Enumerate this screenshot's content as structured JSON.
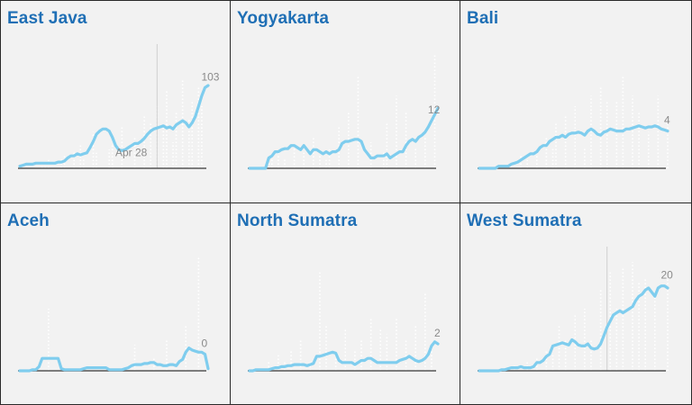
{
  "colors": {
    "line": "#7fcdee",
    "bars": "#ffffff",
    "title": "#1f6fb5",
    "baseline": "#555555",
    "panel_bg": "#f2f2f2"
  },
  "chart_data": [
    {
      "type": "line",
      "title": "East Java",
      "x": [
        1,
        2,
        3,
        4,
        5,
        6,
        7,
        8,
        9,
        10,
        11,
        12,
        13,
        14,
        15,
        16,
        17,
        18,
        19,
        20,
        21,
        22,
        23,
        24,
        25,
        26,
        27,
        28,
        29,
        30,
        31,
        32,
        33,
        34,
        35,
        36,
        37,
        38,
        39,
        40,
        41,
        42,
        43,
        44,
        45,
        46,
        47,
        48,
        49,
        50,
        51,
        52,
        53,
        54,
        55,
        56,
        57,
        58,
        59,
        60
      ],
      "series": [
        {
          "values": [
            2,
            3,
            4,
            4,
            4,
            5,
            5,
            5,
            5,
            5,
            5,
            5,
            6,
            6,
            7,
            10,
            12,
            12,
            14,
            13,
            14,
            15,
            20,
            26,
            33,
            36,
            38,
            38,
            36,
            30,
            22,
            18,
            17,
            18,
            20,
            22,
            24,
            24,
            26,
            29,
            33,
            36,
            38,
            39,
            40,
            41,
            39,
            40,
            38,
            42,
            44,
            46,
            44,
            40,
            44,
            50,
            60,
            70,
            78,
            80
          ]
        },
        {
          "values": [
            0,
            0,
            0,
            0,
            0,
            0,
            0,
            5,
            5,
            8,
            0,
            0,
            0,
            10,
            12,
            0,
            0,
            15,
            0,
            22,
            10,
            0,
            0,
            35,
            15,
            0,
            0,
            0,
            18,
            22,
            0,
            0,
            40,
            0,
            0,
            0,
            30,
            0,
            0,
            50,
            0,
            45,
            0,
            60,
            0,
            40,
            75,
            0,
            25,
            55,
            0,
            85,
            0,
            48,
            65,
            0,
            80,
            60,
            0,
            0
          ]
        }
      ],
      "annotations": [
        {
          "x": 59,
          "label": "103"
        },
        {
          "x": 36,
          "label": "Apr 28"
        }
      ],
      "vline_x": 44
    },
    {
      "type": "line",
      "title": "Yogyakarta",
      "x": [
        1,
        2,
        3,
        4,
        5,
        6,
        7,
        8,
        9,
        10,
        11,
        12,
        13,
        14,
        15,
        16,
        17,
        18,
        19,
        20,
        21,
        22,
        23,
        24,
        25,
        26,
        27,
        28,
        29,
        30,
        31,
        32,
        33,
        34,
        35,
        36,
        37,
        38,
        39,
        40,
        41,
        42,
        43,
        44,
        45,
        46,
        47,
        48,
        49,
        50,
        51,
        52,
        53,
        54,
        55,
        56,
        57,
        58,
        59,
        60
      ],
      "series": [
        {
          "values": [
            0,
            0,
            0,
            0,
            0,
            0,
            10,
            12,
            16,
            16,
            18,
            19,
            19,
            22,
            22,
            20,
            18,
            22,
            18,
            14,
            18,
            18,
            16,
            14,
            16,
            14,
            16,
            16,
            18,
            24,
            26,
            26,
            27,
            28,
            28,
            26,
            18,
            14,
            10,
            10,
            12,
            12,
            12,
            14,
            10,
            12,
            14,
            16,
            16,
            22,
            26,
            28,
            26,
            30,
            32,
            35,
            40,
            46,
            52,
            58
          ]
        },
        {
          "values": [
            0,
            0,
            0,
            0,
            0,
            0,
            5,
            10,
            0,
            15,
            0,
            10,
            0,
            0,
            22,
            0,
            0,
            15,
            0,
            0,
            30,
            0,
            12,
            0,
            8,
            18,
            0,
            0,
            40,
            0,
            0,
            55,
            0,
            0,
            90,
            0,
            0,
            0,
            25,
            0,
            0,
            0,
            15,
            45,
            0,
            0,
            70,
            0,
            0,
            55,
            0,
            0,
            20,
            0,
            0,
            30,
            0,
            0,
            110,
            0
          ]
        }
      ],
      "annotations": [
        {
          "x": 58,
          "label": "12"
        }
      ]
    },
    {
      "type": "line",
      "title": "Bali",
      "x": [
        1,
        2,
        3,
        4,
        5,
        6,
        7,
        8,
        9,
        10,
        11,
        12,
        13,
        14,
        15,
        16,
        17,
        18,
        19,
        20,
        21,
        22,
        23,
        24,
        25,
        26,
        27,
        28,
        29,
        30,
        31,
        32,
        33,
        34,
        35,
        36,
        37,
        38,
        39,
        40,
        41,
        42,
        43,
        44,
        45,
        46,
        47,
        48,
        49,
        50,
        51,
        52,
        53,
        54,
        55,
        56,
        57,
        58,
        59,
        60
      ],
      "series": [
        {
          "values": [
            0,
            0,
            0,
            0,
            0,
            0,
            2,
            2,
            2,
            2,
            4,
            5,
            6,
            8,
            10,
            12,
            14,
            14,
            16,
            20,
            22,
            22,
            26,
            28,
            30,
            30,
            32,
            30,
            33,
            34,
            34,
            35,
            34,
            32,
            36,
            38,
            36,
            33,
            32,
            35,
            36,
            38,
            37,
            36,
            36,
            36,
            38,
            38,
            39,
            40,
            41,
            40,
            39,
            40,
            40,
            41,
            40,
            38,
            37,
            36
          ]
        },
        {
          "values": [
            0,
            0,
            0,
            0,
            0,
            0,
            0,
            0,
            0,
            0,
            5,
            0,
            0,
            12,
            0,
            8,
            0,
            0,
            18,
            0,
            0,
            30,
            0,
            20,
            45,
            0,
            0,
            50,
            0,
            0,
            60,
            0,
            0,
            20,
            0,
            70,
            0,
            0,
            80,
            0,
            65,
            0,
            0,
            65,
            0,
            90,
            0,
            0,
            70,
            0,
            55,
            0,
            0,
            35,
            0,
            0,
            70,
            0,
            0,
            45
          ]
        }
      ],
      "annotations": [
        {
          "x": 60,
          "label": "4"
        }
      ]
    },
    {
      "type": "line",
      "title": "Aceh",
      "x": [
        1,
        2,
        3,
        4,
        5,
        6,
        7,
        8,
        9,
        10,
        11,
        12,
        13,
        14,
        15,
        16,
        17,
        18,
        19,
        20,
        21,
        22,
        23,
        24,
        25,
        26,
        27,
        28,
        29,
        30,
        31,
        32,
        33,
        34,
        35,
        36,
        37,
        38,
        39,
        40,
        41,
        42,
        43,
        44,
        45,
        46,
        47,
        48,
        49,
        50,
        51,
        52,
        53,
        54,
        55,
        56,
        57,
        58,
        59,
        60
      ],
      "series": [
        {
          "values": [
            0,
            0,
            0,
            0,
            1,
            1,
            4,
            12,
            12,
            12,
            12,
            12,
            12,
            2,
            1,
            1,
            1,
            1,
            1,
            1,
            2,
            3,
            3,
            3,
            3,
            3,
            3,
            3,
            1,
            1,
            1,
            1,
            1,
            2,
            3,
            5,
            6,
            6,
            6,
            7,
            7,
            8,
            8,
            6,
            6,
            5,
            5,
            6,
            6,
            5,
            9,
            11,
            18,
            22,
            20,
            19,
            18,
            18,
            16,
            2
          ]
        },
        {
          "values": [
            0,
            0,
            0,
            0,
            0,
            0,
            0,
            0,
            0,
            60,
            0,
            0,
            0,
            0,
            0,
            0,
            0,
            0,
            0,
            0,
            0,
            0,
            0,
            0,
            0,
            0,
            0,
            0,
            0,
            0,
            0,
            0,
            0,
            0,
            0,
            0,
            25,
            0,
            0,
            0,
            0,
            0,
            12,
            0,
            0,
            0,
            30,
            0,
            0,
            0,
            0,
            0,
            45,
            0,
            0,
            0,
            110,
            0,
            0,
            0
          ]
        }
      ],
      "annotations": [
        {
          "x": 59,
          "label": "0"
        }
      ]
    },
    {
      "type": "line",
      "title": "North Sumatra",
      "x": [
        1,
        2,
        3,
        4,
        5,
        6,
        7,
        8,
        9,
        10,
        11,
        12,
        13,
        14,
        15,
        16,
        17,
        18,
        19,
        20,
        21,
        22,
        23,
        24,
        25,
        26,
        27,
        28,
        29,
        30,
        31,
        32,
        33,
        34,
        35,
        36,
        37,
        38,
        39,
        40,
        41,
        42,
        43,
        44,
        45,
        46,
        47,
        48,
        49,
        50,
        51,
        52,
        53,
        54,
        55,
        56,
        57,
        58,
        59,
        60
      ],
      "series": [
        {
          "values": [
            0,
            0,
            1,
            1,
            1,
            1,
            1,
            2,
            3,
            3,
            4,
            4,
            5,
            5,
            6,
            6,
            6,
            6,
            5,
            6,
            7,
            14,
            14,
            15,
            16,
            17,
            18,
            17,
            10,
            8,
            8,
            8,
            8,
            6,
            8,
            10,
            10,
            12,
            12,
            10,
            8,
            8,
            8,
            8,
            8,
            8,
            8,
            10,
            11,
            12,
            14,
            12,
            10,
            9,
            10,
            12,
            16,
            24,
            28,
            26
          ]
        },
        {
          "values": [
            0,
            0,
            0,
            0,
            0,
            0,
            10,
            0,
            0,
            15,
            0,
            8,
            0,
            20,
            0,
            0,
            30,
            0,
            0,
            10,
            0,
            0,
            95,
            0,
            45,
            0,
            0,
            15,
            0,
            0,
            40,
            0,
            0,
            20,
            0,
            30,
            0,
            0,
            50,
            0,
            0,
            40,
            0,
            35,
            0,
            0,
            50,
            0,
            0,
            30,
            0,
            0,
            45,
            0,
            0,
            75,
            0,
            25,
            0,
            0
          ]
        }
      ],
      "annotations": [
        {
          "x": 60,
          "label": "2"
        }
      ]
    },
    {
      "type": "line",
      "title": "West Sumatra",
      "x": [
        1,
        2,
        3,
        4,
        5,
        6,
        7,
        8,
        9,
        10,
        11,
        12,
        13,
        14,
        15,
        16,
        17,
        18,
        19,
        20,
        21,
        22,
        23,
        24,
        25,
        26,
        27,
        28,
        29,
        30,
        31,
        32,
        33,
        34,
        35,
        36,
        37,
        38,
        39,
        40,
        41,
        42,
        43,
        44,
        45,
        46,
        47,
        48,
        49,
        50,
        51,
        52,
        53,
        54,
        55,
        56,
        57,
        58,
        59,
        60
      ],
      "series": [
        {
          "values": [
            0,
            0,
            0,
            0,
            0,
            0,
            0,
            1,
            1,
            2,
            3,
            3,
            3,
            4,
            3,
            3,
            3,
            4,
            8,
            8,
            10,
            14,
            16,
            24,
            25,
            26,
            27,
            26,
            25,
            30,
            28,
            25,
            24,
            24,
            26,
            22,
            21,
            22,
            26,
            34,
            42,
            48,
            54,
            56,
            58,
            56,
            58,
            60,
            62,
            68,
            72,
            74,
            78,
            80,
            76,
            72,
            80,
            82,
            82,
            80
          ]
        },
        {
          "values": [
            0,
            0,
            0,
            0,
            0,
            0,
            0,
            0,
            0,
            0,
            0,
            5,
            0,
            0,
            0,
            8,
            0,
            0,
            12,
            0,
            0,
            20,
            0,
            15,
            0,
            45,
            0,
            30,
            0,
            0,
            55,
            0,
            0,
            60,
            0,
            30,
            0,
            0,
            80,
            0,
            0,
            95,
            0,
            60,
            0,
            100,
            0,
            0,
            105,
            0,
            85,
            0,
            90,
            0,
            0,
            75,
            0,
            0,
            0,
            90
          ]
        }
      ],
      "annotations": [
        {
          "x": 59,
          "label": "20"
        }
      ],
      "vline_x": 41
    }
  ]
}
